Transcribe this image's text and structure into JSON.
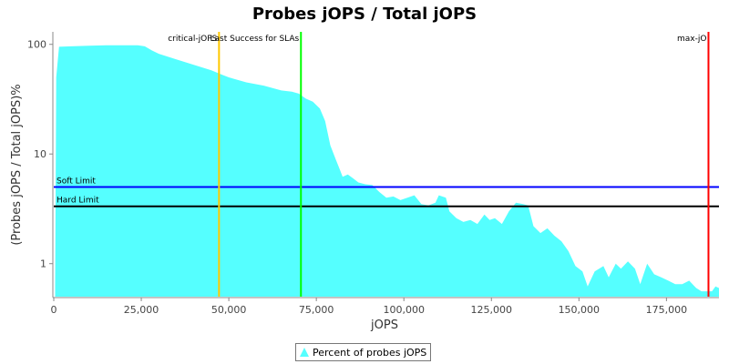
{
  "chart_data": {
    "type": "area",
    "title": "Probes jOPS / Total jOPS",
    "xlabel": "jOPS",
    "ylabel": "(Probes jOPS / Total jOPS)%",
    "xlim": [
      0,
      190000
    ],
    "ylim": [
      0.5,
      130
    ],
    "y_scale": "log",
    "grid": false,
    "legend_position": "bottom",
    "x_ticks": [
      0,
      25000,
      50000,
      75000,
      100000,
      125000,
      150000,
      175000
    ],
    "x_tick_labels": [
      "0",
      "25,000",
      "50,000",
      "75,000",
      "100,000",
      "125,000",
      "150,000",
      "175,000"
    ],
    "y_ticks": [
      1,
      10,
      100
    ],
    "y_tick_labels": [
      "1",
      "10",
      "100"
    ],
    "series": [
      {
        "name": "Percent of probes jOPS",
        "color": "#55ffff",
        "points": [
          [
            400,
            0.6
          ],
          [
            700,
            50
          ],
          [
            1500,
            95
          ],
          [
            5000,
            96
          ],
          [
            10000,
            97
          ],
          [
            15000,
            98
          ],
          [
            20000,
            98
          ],
          [
            24000,
            98
          ],
          [
            26000,
            96
          ],
          [
            28000,
            88
          ],
          [
            30000,
            82
          ],
          [
            35000,
            73
          ],
          [
            40000,
            65
          ],
          [
            45000,
            58
          ],
          [
            48000,
            53
          ],
          [
            50000,
            50
          ],
          [
            55000,
            45
          ],
          [
            60000,
            42
          ],
          [
            65000,
            38
          ],
          [
            68000,
            37
          ],
          [
            70000,
            35.5
          ],
          [
            72000,
            32
          ],
          [
            74000,
            30
          ],
          [
            76000,
            26
          ],
          [
            77500,
            20
          ],
          [
            79000,
            12
          ],
          [
            80500,
            9
          ],
          [
            81500,
            7.5
          ],
          [
            82500,
            6.2
          ],
          [
            84000,
            6.5
          ],
          [
            85500,
            6.0
          ],
          [
            87000,
            5.5
          ],
          [
            89000,
            5.3
          ],
          [
            91000,
            5.2
          ],
          [
            93000,
            4.5
          ],
          [
            95000,
            4.0
          ],
          [
            97000,
            4.1
          ],
          [
            99000,
            3.8
          ],
          [
            101000,
            4.0
          ],
          [
            103000,
            4.2
          ],
          [
            105000,
            3.5
          ],
          [
            107000,
            3.4
          ],
          [
            109000,
            3.6
          ],
          [
            110000,
            4.2
          ],
          [
            112000,
            4.0
          ],
          [
            113000,
            3.0
          ],
          [
            115000,
            2.6
          ],
          [
            117000,
            2.4
          ],
          [
            119000,
            2.5
          ],
          [
            121000,
            2.3
          ],
          [
            123000,
            2.8
          ],
          [
            124500,
            2.5
          ],
          [
            126000,
            2.6
          ],
          [
            128000,
            2.3
          ],
          [
            130000,
            3.0
          ],
          [
            132000,
            3.6
          ],
          [
            134000,
            3.5
          ],
          [
            135500,
            3.4
          ],
          [
            137000,
            2.2
          ],
          [
            139000,
            1.9
          ],
          [
            141000,
            2.1
          ],
          [
            143000,
            1.8
          ],
          [
            145000,
            1.6
          ],
          [
            147000,
            1.3
          ],
          [
            149000,
            0.95
          ],
          [
            151000,
            0.85
          ],
          [
            152500,
            0.62
          ],
          [
            154500,
            0.85
          ],
          [
            157000,
            0.95
          ],
          [
            158500,
            0.75
          ],
          [
            160500,
            1.0
          ],
          [
            162000,
            0.9
          ],
          [
            164000,
            1.05
          ],
          [
            166000,
            0.9
          ],
          [
            167500,
            0.65
          ],
          [
            169500,
            1.0
          ],
          [
            171500,
            0.8
          ],
          [
            173500,
            0.75
          ],
          [
            175500,
            0.7
          ],
          [
            177500,
            0.65
          ],
          [
            179500,
            0.65
          ],
          [
            181500,
            0.7
          ],
          [
            183500,
            0.6
          ],
          [
            185000,
            0.56
          ],
          [
            186500,
            0.56
          ],
          [
            188000,
            0.56
          ],
          [
            189000,
            0.62
          ],
          [
            190000,
            0.6
          ]
        ]
      }
    ],
    "vertical_markers": [
      {
        "label": "critical-jOPS",
        "value": 47200,
        "color": "#ffc800"
      },
      {
        "label": "Last Success for SLAs",
        "value": 70600,
        "color": "#00ff00"
      },
      {
        "label": "max-jO",
        "value": 187000,
        "color": "#ff0000"
      }
    ],
    "horizontal_markers": [
      {
        "label": "Soft Limit",
        "value": 5,
        "color": "#0000ff"
      },
      {
        "label": "Hard Limit",
        "value": 3.333,
        "color": "#000000"
      }
    ]
  }
}
